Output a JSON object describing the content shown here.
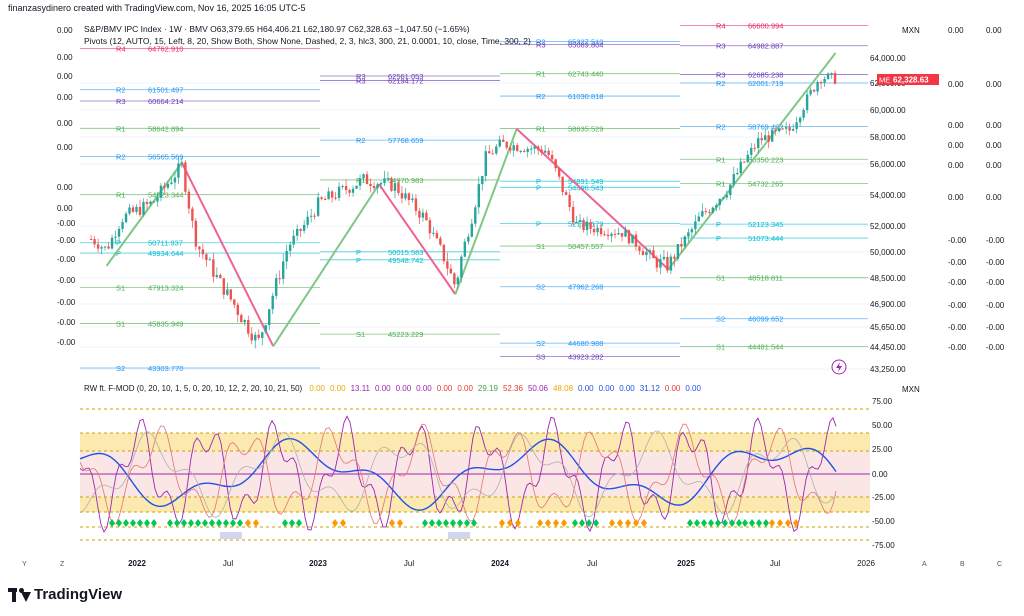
{
  "header": {
    "attribution": "finanzasydinero created with TradingView.com, Nov 16, 2025 16:05 UTC-5",
    "symbol_line": "S&P/BMV IPC Index · 1W · BMV  O63,379.65  H64,406.21  L62,180.97  C62,328.63  −1,047.50 (−1.65%)",
    "pivots_line": "Pivots (12, AUTO, 15, Left, 8, 20, Show Both, Show None, Dashed, 2, 3, hlc3, 300, 21, 0.0001, 10, close, Time, 300, 2)",
    "left_values": [
      "0.00",
      "0.00",
      "0.00",
      "0.00",
      "0.00",
      "0.00",
      "0.00",
      "0.00",
      "-0.00",
      "-0.00",
      "-0.00",
      "-0.00",
      "-0.00",
      "-0.00",
      "-0.00"
    ]
  },
  "price_axis": {
    "currency": "MXN",
    "ticks": [
      "64,000.00",
      "62,000.00",
      "60,000.00",
      "58,000.00",
      "56,000.00",
      "54,000.00",
      "52,000.00",
      "50,000.00",
      "48,500.00",
      "46,900.00",
      "45,650.00",
      "44,450.00",
      "43,250.00"
    ],
    "right_col1": [
      "0.00",
      "0.00",
      "0.00",
      "0.00",
      "0.00",
      "0.00",
      "-0.00",
      "-0.00",
      "-0.00",
      "-0.00",
      "-0.00",
      "-0.00"
    ],
    "right_col2": [
      "0.00",
      "0.00",
      "0.00",
      "0.00",
      "0.00",
      "0.00",
      "-0.00",
      "-0.00",
      "-0.00",
      "-0.00",
      "-0.00",
      "-0.00"
    ],
    "last_price_badge": "62,328.63",
    "badge_prefix": "ME",
    "badge_color": "#f23645"
  },
  "pivot_labels": [
    {
      "name": "R4",
      "value": "64762.910"
    },
    {
      "name": "R2",
      "value": "61501.497"
    },
    {
      "name": "R3",
      "value": "60664.214"
    },
    {
      "name": "R1",
      "value": "58642.894"
    },
    {
      "name": "R2",
      "value": "56565.569"
    },
    {
      "name": "R1",
      "value": "54023.344"
    },
    {
      "name": "P",
      "value": "50711.937"
    },
    {
      "name": "P",
      "value": "49934.644"
    },
    {
      "name": "S1",
      "value": "47913.324"
    },
    {
      "name": "S1",
      "value": "45835.949"
    },
    {
      "name": "S2",
      "value": "43303.770"
    },
    {
      "name": "R3",
      "value": "62561.053"
    },
    {
      "name": "R3",
      "value": "62194.172"
    },
    {
      "name": "R2",
      "value": "57768.659"
    },
    {
      "name": "R1",
      "value": "54970.983"
    },
    {
      "name": "P",
      "value": "50015.583"
    },
    {
      "name": "P",
      "value": "49548.742"
    },
    {
      "name": "S1",
      "value": "45223.229"
    },
    {
      "name": "R2",
      "value": "65327.510"
    },
    {
      "name": "R3",
      "value": "65089.804"
    },
    {
      "name": "R1",
      "value": "62743.440"
    },
    {
      "name": "R2",
      "value": "61030.818"
    },
    {
      "name": "R1",
      "value": "58635.529"
    },
    {
      "name": "P",
      "value": "54891.549"
    },
    {
      "name": "P",
      "value": "54496.543"
    },
    {
      "name": "P",
      "value": "52170.179"
    },
    {
      "name": "S1",
      "value": "50457.557"
    },
    {
      "name": "S2",
      "value": "47962.268"
    },
    {
      "name": "S2",
      "value": "44680.988"
    },
    {
      "name": "S3",
      "value": "43923.282"
    },
    {
      "name": "R4",
      "value": "66600.994"
    },
    {
      "name": "R3",
      "value": "64982.887"
    },
    {
      "name": "R3",
      "value": "62685.238"
    },
    {
      "name": "R2",
      "value": "62001.719"
    },
    {
      "name": "R2",
      "value": "58769.482"
    },
    {
      "name": "R1",
      "value": "56350.223"
    },
    {
      "name": "R1",
      "value": "54732.265"
    },
    {
      "name": "P",
      "value": "52123.345"
    },
    {
      "name": "P",
      "value": "51073.444"
    },
    {
      "name": "S1",
      "value": "48518.811"
    },
    {
      "name": "S2",
      "value": "46099.652"
    },
    {
      "name": "S1",
      "value": "44481.544"
    }
  ],
  "oscillator": {
    "legend_name": "RW ft. F-MOD (0, 20, 10, 1, 5, 0, 20, 10, 12, 2, 20, 10, 21, 50)",
    "legend_values": [
      {
        "v": "0.00",
        "c": "#f0a500"
      },
      {
        "v": "0.00",
        "c": "#f0a500"
      },
      {
        "v": "13.11",
        "c": "#9c27b0"
      },
      {
        "v": "0.00",
        "c": "#9c27b0"
      },
      {
        "v": "0.00",
        "c": "#9c27b0"
      },
      {
        "v": "0.00",
        "c": "#9c27b0"
      },
      {
        "v": "0.00",
        "c": "#e53935"
      },
      {
        "v": "0.00",
        "c": "#e53935"
      },
      {
        "v": "29.19",
        "c": "#43a047"
      },
      {
        "v": "52.36",
        "c": "#e53935"
      },
      {
        "v": "50.06",
        "c": "#9c27b0"
      },
      {
        "v": "48.08",
        "c": "#f0a500"
      },
      {
        "v": "0.00",
        "c": "#1e53e5"
      },
      {
        "v": "0.00",
        "c": "#1e53e5"
      },
      {
        "v": "0.00",
        "c": "#1e53e5"
      },
      {
        "v": "31.12",
        "c": "#1e53e5"
      },
      {
        "v": "0.00",
        "c": "#e53935"
      },
      {
        "v": "0.00",
        "c": "#1e53e5"
      }
    ],
    "currency": "MXN",
    "ticks": [
      "75.00",
      "50.00",
      "25.00",
      "0.00",
      "-25.00",
      "-50.00",
      "-75.00"
    ]
  },
  "time_axis": {
    "labels": [
      "2022",
      "Jul",
      "2023",
      "Jul",
      "2024",
      "Jul",
      "2025",
      "Jul",
      "2026"
    ],
    "bold": [
      true,
      false,
      true,
      false,
      true,
      false,
      true,
      false,
      false
    ],
    "corner_left": [
      "Y",
      "Z"
    ],
    "corner_right": [
      "A",
      "B",
      "C"
    ]
  },
  "chart_data": {
    "type": "candlestick",
    "title": "S&P/BMV IPC Index · 1W · BMV",
    "x_range": [
      "2021-10",
      "2025-11"
    ],
    "y_range": [
      43250,
      65500
    ],
    "series": [
      {
        "name": "S&P/BMV IPC Index",
        "approx_closes": [
          {
            "x": "2021-10",
            "y": 51000
          },
          {
            "x": "2021-11",
            "y": 50200
          },
          {
            "x": "2021-12",
            "y": 52500
          },
          {
            "x": "2022-02",
            "y": 53500
          },
          {
            "x": "2022-04",
            "y": 55900
          },
          {
            "x": "2022-05",
            "y": 50500
          },
          {
            "x": "2022-07",
            "y": 47500
          },
          {
            "x": "2022-09",
            "y": 44700
          },
          {
            "x": "2022-11",
            "y": 50500
          },
          {
            "x": "2023-01",
            "y": 53500
          },
          {
            "x": "2023-04",
            "y": 55000
          },
          {
            "x": "2023-06",
            "y": 54600
          },
          {
            "x": "2023-08",
            "y": 52500
          },
          {
            "x": "2023-10",
            "y": 48000
          },
          {
            "x": "2023-12",
            "y": 56500
          },
          {
            "x": "2024-01",
            "y": 57500
          },
          {
            "x": "2024-04",
            "y": 57000
          },
          {
            "x": "2024-06",
            "y": 52000
          },
          {
            "x": "2024-09",
            "y": 51500
          },
          {
            "x": "2024-11",
            "y": 49500
          },
          {
            "x": "2024-12",
            "y": 49200
          },
          {
            "x": "2025-02",
            "y": 52500
          },
          {
            "x": "2025-04",
            "y": 54500
          },
          {
            "x": "2025-06",
            "y": 57800
          },
          {
            "x": "2025-08",
            "y": 58500
          },
          {
            "x": "2025-10",
            "y": 62500
          },
          {
            "x": "2025-11",
            "y": 62328.63
          }
        ]
      }
    ],
    "last": {
      "open": 63379.65,
      "high": 64406.21,
      "low": 62180.97,
      "close": 62328.63,
      "change": -1047.5,
      "change_pct": -1.65
    }
  }
}
